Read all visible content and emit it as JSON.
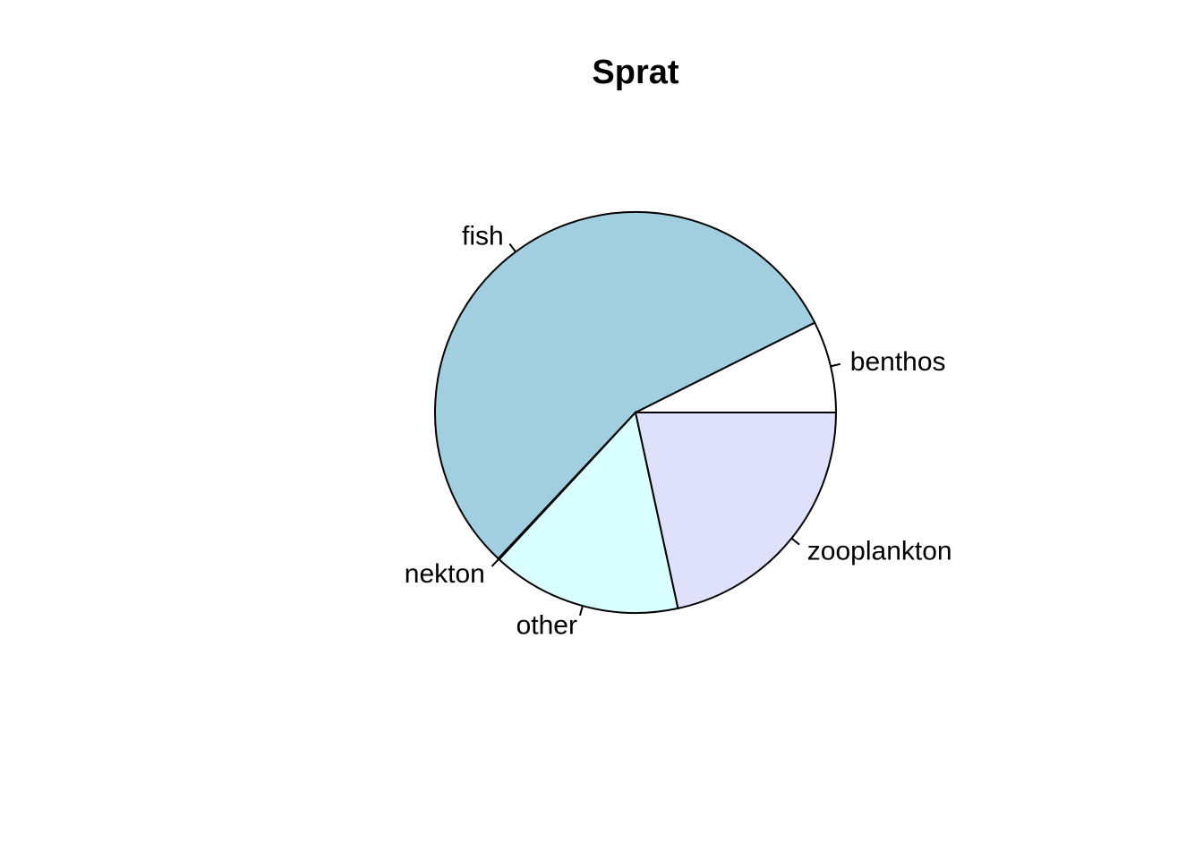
{
  "chart_data": {
    "type": "pie",
    "title": "Sprat",
    "direction": "counterclockwise",
    "start_angle_deg": 0,
    "slices": [
      {
        "label": "benthos",
        "value": 7.4,
        "color": "#FFFFFF"
      },
      {
        "label": "fish",
        "value": 55.6,
        "color": "#A1CFE0"
      },
      {
        "label": "nekton",
        "value": 0.1,
        "color": "#E0FFFF"
      },
      {
        "label": "other",
        "value": 15.3,
        "color": "#D9FFFF"
      },
      {
        "label": "zooplankton",
        "value": 21.6,
        "color": "#DFE0F9"
      }
    ]
  }
}
